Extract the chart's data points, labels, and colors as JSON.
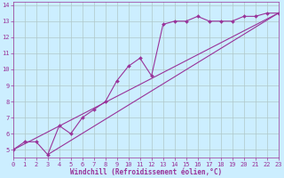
{
  "xlabel": "Windchill (Refroidissement éolien,°C)",
  "bg_color": "#cceeff",
  "grid_color": "#b0c8c8",
  "line_color": "#993399",
  "xmin": 0,
  "xmax": 23,
  "ymin": 4.5,
  "ymax": 14.2,
  "yticks": [
    5,
    6,
    7,
    8,
    9,
    10,
    11,
    12,
    13,
    14
  ],
  "xticks": [
    0,
    1,
    2,
    3,
    4,
    5,
    6,
    7,
    8,
    9,
    10,
    11,
    12,
    13,
    14,
    15,
    16,
    17,
    18,
    19,
    20,
    21,
    22,
    23
  ],
  "line1_x": [
    0,
    1,
    2,
    3,
    4,
    5,
    6,
    7,
    8,
    9,
    10,
    11,
    12,
    13,
    14,
    15,
    16,
    17,
    18,
    19,
    20,
    21,
    22,
    23
  ],
  "line1_y": [
    5.0,
    5.5,
    5.5,
    4.7,
    6.5,
    6.0,
    7.0,
    7.5,
    8.0,
    9.3,
    10.2,
    10.7,
    9.6,
    12.8,
    13.0,
    13.0,
    13.3,
    13.0,
    13.0,
    13.0,
    13.3,
    13.3,
    13.5,
    13.5
  ],
  "line2_x": [
    0,
    23
  ],
  "line2_y": [
    5.0,
    13.5
  ],
  "line3_x": [
    3,
    23
  ],
  "line3_y": [
    4.7,
    13.5
  ],
  "tick_fontsize": 5.0,
  "xlabel_fontsize": 5.5
}
